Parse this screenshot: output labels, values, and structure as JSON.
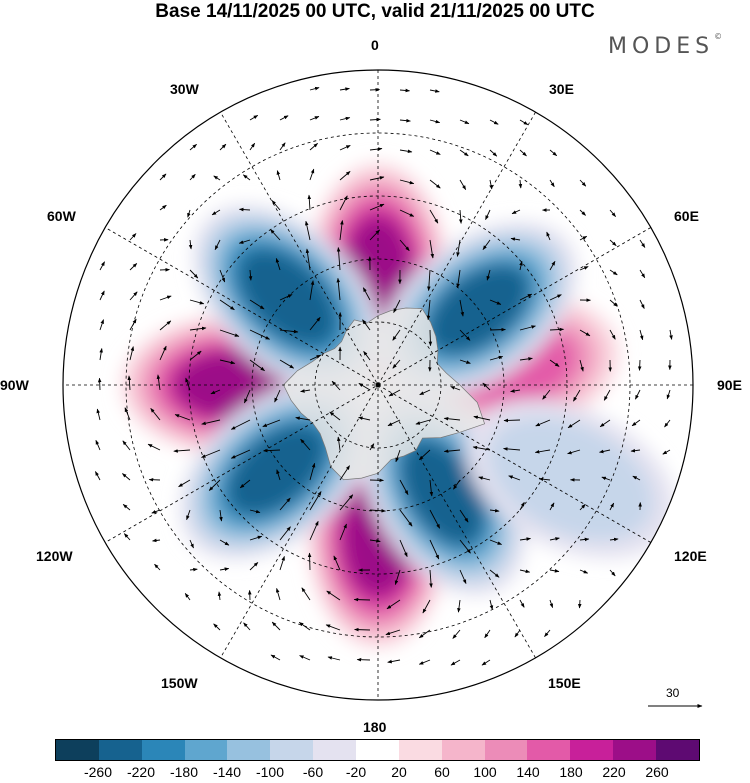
{
  "title": "Base 14/11/2025 00 UTC, valid 21/11/2025 00 UTC",
  "brand": "MODES",
  "brand_mark": "©",
  "longitude_labels": {
    "top": "0",
    "bottom": "180",
    "left": "90W",
    "right": "90E",
    "w30": "30W",
    "w60": "60W",
    "w120": "120W",
    "w150": "150W",
    "e30": "30E",
    "e60": "60E",
    "e120": "120E",
    "e150": "150E"
  },
  "reference_vector": "30",
  "colorbar": {
    "colors": [
      "#0d3f5c",
      "#16628f",
      "#2b86b8",
      "#5fa6cf",
      "#97c1df",
      "#c6d6ea",
      "#e4e2f0",
      "#ffffff",
      "#fadbe2",
      "#f5b5cb",
      "#ec8cb8",
      "#e35aa8",
      "#c8209a",
      "#9c0e88",
      "#5e0a72"
    ],
    "tick_labels": [
      "-260",
      "-220",
      "-180",
      "-140",
      "-100",
      "-60",
      "-20",
      "20",
      "60",
      "100",
      "140",
      "180",
      "220",
      "260"
    ]
  },
  "anomaly_centers": [
    {
      "name": "pole-positive",
      "lon": 0,
      "colat": 17.5,
      "value": 240
    },
    {
      "name": "positive",
      "lon": -90,
      "colat": 23,
      "value": 230
    },
    {
      "name": "positive",
      "lon": 180,
      "colat": 24,
      "value": 250
    },
    {
      "name": "positive",
      "lon": 81,
      "colat": 21,
      "value": 170
    },
    {
      "name": "negative",
      "lon": -46,
      "colat": 20,
      "value": -250
    },
    {
      "name": "negative",
      "lon": 53,
      "colat": 20,
      "value": -220
    },
    {
      "name": "negative",
      "lon": -130,
      "colat": 21,
      "value": -230
    },
    {
      "name": "negative",
      "lon": 149,
      "colat": 20,
      "value": -220
    },
    {
      "name": "negative-weak",
      "lon": 116,
      "colat": 34,
      "value": -70
    }
  ]
}
